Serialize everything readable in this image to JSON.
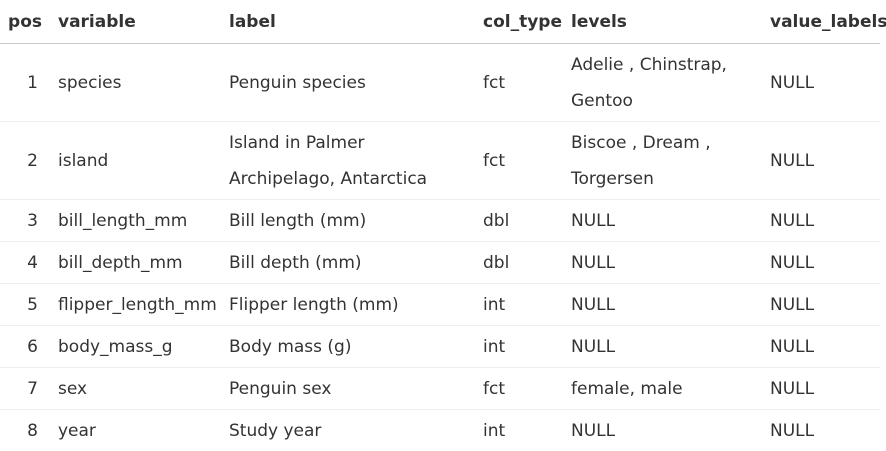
{
  "table": {
    "headers": {
      "pos": "pos",
      "variable": "variable",
      "label": "label",
      "col_type": "col_type",
      "levels": "levels",
      "value_labels": "value_labels"
    },
    "rows": [
      {
        "pos": "1",
        "variable": "species",
        "label": "Penguin species",
        "col_type": "fct",
        "levels": "Adelie , Chinstrap, Gentoo",
        "value_labels": "NULL"
      },
      {
        "pos": "2",
        "variable": "island",
        "label": "Island in Palmer Archipelago, Antarctica",
        "col_type": "fct",
        "levels": "Biscoe , Dream , Torgersen",
        "value_labels": "NULL"
      },
      {
        "pos": "3",
        "variable": "bill_length_mm",
        "label": "Bill length (mm)",
        "col_type": "dbl",
        "levels": "NULL",
        "value_labels": "NULL"
      },
      {
        "pos": "4",
        "variable": "bill_depth_mm",
        "label": "Bill depth (mm)",
        "col_type": "dbl",
        "levels": "NULL",
        "value_labels": "NULL"
      },
      {
        "pos": "5",
        "variable": "flipper_length_mm",
        "label": "Flipper length (mm)",
        "col_type": "int",
        "levels": "NULL",
        "value_labels": "NULL"
      },
      {
        "pos": "6",
        "variable": "body_mass_g",
        "label": "Body mass (g)",
        "col_type": "int",
        "levels": "NULL",
        "value_labels": "NULL"
      },
      {
        "pos": "7",
        "variable": "sex",
        "label": "Penguin sex",
        "col_type": "fct",
        "levels": "female, male",
        "value_labels": "NULL"
      },
      {
        "pos": "8",
        "variable": "year",
        "label": "Study year",
        "col_type": "int",
        "levels": "NULL",
        "value_labels": "NULL"
      }
    ]
  }
}
